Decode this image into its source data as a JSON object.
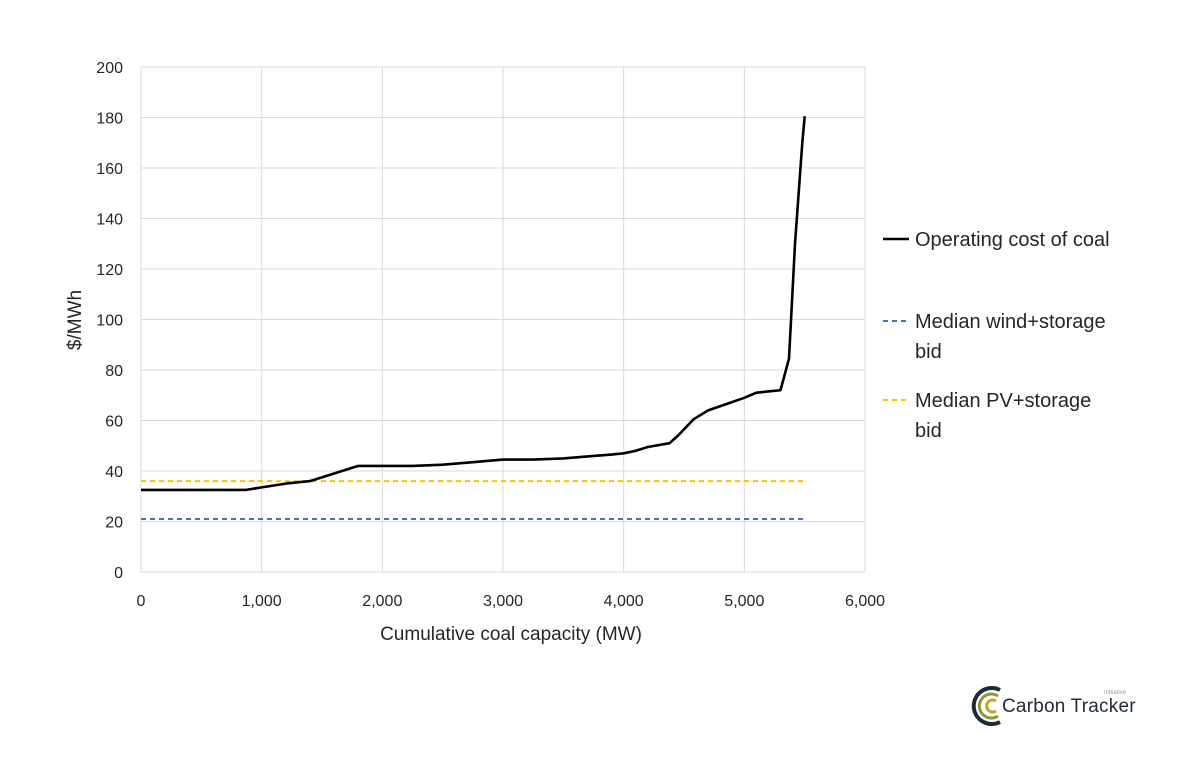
{
  "chart_data": {
    "type": "line",
    "xlabel": "Cumulative coal capacity (MW)",
    "ylabel": "$/MWh",
    "xlim": [
      0,
      6000
    ],
    "ylim": [
      0,
      200
    ],
    "x_ticks": [
      0,
      1000,
      2000,
      3000,
      4000,
      5000,
      6000
    ],
    "x_tick_labels": [
      "0",
      "1,000",
      "2,000",
      "3,000",
      "4,000",
      "5,000",
      "6,000"
    ],
    "y_ticks": [
      0,
      20,
      40,
      60,
      80,
      100,
      120,
      140,
      160,
      180,
      200
    ],
    "y_tick_labels": [
      "0",
      "20",
      "40",
      "60",
      "80",
      "100",
      "120",
      "140",
      "160",
      "180",
      "200"
    ],
    "grid": true,
    "legend_position": "right",
    "series": [
      {
        "name": "Operating cost of coal",
        "style": "solid",
        "color": "#000000",
        "x": [
          0,
          870,
          1000,
          1200,
          1400,
          1600,
          1800,
          2000,
          2250,
          2500,
          2750,
          3000,
          3250,
          3500,
          3750,
          3900,
          4000,
          4100,
          4200,
          4380,
          4450,
          4580,
          4700,
          4850,
          5000,
          5100,
          5300,
          5370,
          5420,
          5480,
          5500
        ],
        "y": [
          32.5,
          32.5,
          33.5,
          35,
          36,
          39,
          42,
          42,
          42,
          42.5,
          43.5,
          44.5,
          44.5,
          45,
          46,
          46.5,
          47,
          48,
          49.5,
          51,
          54,
          60.5,
          64,
          66.5,
          69,
          71,
          72,
          84.5,
          130,
          170,
          180.5
        ]
      },
      {
        "name": "Median wind+storage bid",
        "style": "dashed",
        "color": "#4472C4",
        "x": [
          0,
          5500
        ],
        "y": [
          21,
          21
        ]
      },
      {
        "name": "Median PV+storage bid",
        "style": "dashed",
        "color": "#FFC000",
        "x": [
          0,
          5500
        ],
        "y": [
          36,
          36
        ]
      }
    ],
    "legend": [
      {
        "lines": [
          "Operating cost of coal"
        ],
        "style": "solid",
        "color": "#000000"
      },
      {
        "lines": [
          "Median wind+storage",
          "bid"
        ],
        "style": "dashed",
        "color": "#4472C4"
      },
      {
        "lines": [
          "Median PV+storage",
          "bid"
        ],
        "style": "dashed",
        "color": "#FFC000"
      }
    ]
  },
  "logo": {
    "text": "Carbon Tracker",
    "subtext": "Initiative",
    "colors": [
      "#1f2a36",
      "#8a9a2b",
      "#c9a227"
    ]
  }
}
